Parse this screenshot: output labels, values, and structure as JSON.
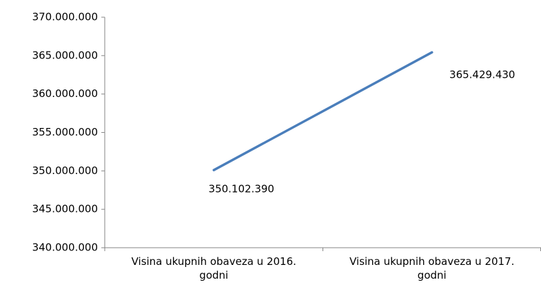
{
  "chart_data": {
    "type": "line",
    "categories": [
      "Visina ukupnih obaveza u 2016. godni",
      "Visina ukupnih obaveza u 2017. godni"
    ],
    "values": [
      350102390,
      365429430
    ],
    "value_labels": [
      "350.102.390",
      "365.429.430"
    ],
    "color": "#4a7ebb",
    "ylim": [
      340000000,
      370000000
    ],
    "yticks": [
      {
        "value": 340000000,
        "label": "340.000.000"
      },
      {
        "value": 345000000,
        "label": "345.000.000"
      },
      {
        "value": 350000000,
        "label": "350.000.000"
      },
      {
        "value": 355000000,
        "label": "355.000.000"
      },
      {
        "value": 360000000,
        "label": "360.000.000"
      },
      {
        "value": 365000000,
        "label": "365.000.000"
      },
      {
        "value": 370000000,
        "label": "370.000.000"
      }
    ],
    "grid": false
  }
}
